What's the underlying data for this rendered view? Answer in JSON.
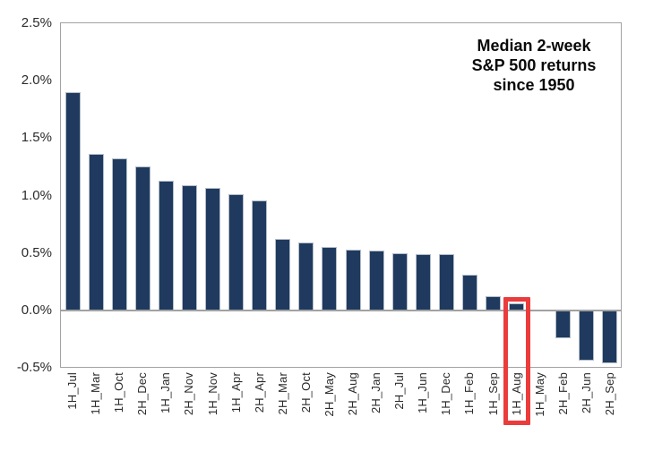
{
  "chart_data": {
    "type": "bar",
    "title": "Median 2-week S&P 500 returns since 1950",
    "title_lines": [
      "Median 2-week",
      "S&P 500 returns",
      "since 1950"
    ],
    "categories": [
      "1H_Jul",
      "1H_Mar",
      "1H_Oct",
      "2H_Dec",
      "1H_Jan",
      "2H_Nov",
      "1H_Nov",
      "1H_Apr",
      "2H_Apr",
      "2H_Mar",
      "2H_Oct",
      "2H_May",
      "2H_Aug",
      "2H_Jan",
      "2H_Jul",
      "1H_Jun",
      "1H_Dec",
      "1H_Feb",
      "1H_Sep",
      "1H_Aug",
      "1H_May",
      "2H_Feb",
      "2H_Jun",
      "2H_Sep"
    ],
    "values": [
      1.9,
      1.36,
      1.32,
      1.25,
      1.13,
      1.09,
      1.07,
      1.01,
      0.96,
      0.62,
      0.59,
      0.55,
      0.53,
      0.52,
      0.5,
      0.49,
      0.49,
      0.31,
      0.12,
      0.06,
      0.0,
      -0.24,
      -0.44,
      -0.46
    ],
    "value_unit": "%",
    "ylim": [
      -0.5,
      2.5
    ],
    "ytick_values": [
      2.5,
      2.0,
      1.5,
      1.0,
      0.5,
      0.0,
      -0.5
    ],
    "ytick_labels": [
      "2.5%",
      "2.0%",
      "1.5%",
      "1.0%",
      "0.5%",
      "0.0%",
      "-0.5%"
    ],
    "highlighted_category": "1H_Aug",
    "bar_color": "#1f3a5e",
    "highlight_box_color": "#ea3c3c",
    "grid": false,
    "legend": "none",
    "xlabel": "",
    "ylabel": ""
  }
}
